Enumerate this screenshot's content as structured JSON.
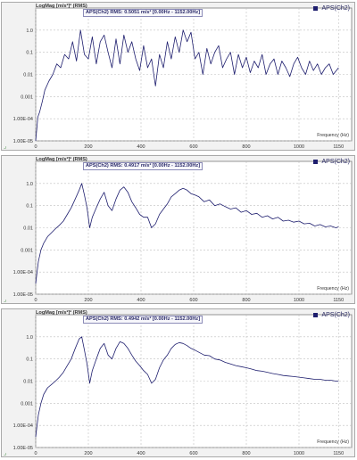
{
  "chart_data": [
    {
      "type": "line",
      "title": "LogMag [m/s²]² (RMS)",
      "rms_annotation": "APS(Ch2) RMS: 0.5051 m/s² [0.00Hz - 1152.00Hz]",
      "xlabel": "Frequency (Hz)",
      "ylabel": "LogMag [m/s²]² (RMS)",
      "xlim": [
        0,
        1200
      ],
      "ylim": [
        1e-05,
        10
      ],
      "log_y": true,
      "grid": true,
      "legend_position": "top-right",
      "x_ticks": [
        "0",
        "200",
        "400",
        "600",
        "800",
        "1000",
        "1150"
      ],
      "y_ticks": [
        "1.0",
        "0.1",
        "0.01",
        "0.001",
        "1.00E-04",
        "1.00E-05"
      ],
      "series": [
        {
          "name": "APS(Ch2)",
          "color": "#1e1e6e",
          "x": [
            0,
            8,
            15,
            25,
            35,
            50,
            65,
            80,
            95,
            110,
            125,
            140,
            155,
            170,
            185,
            200,
            215,
            230,
            245,
            260,
            275,
            290,
            305,
            320,
            335,
            350,
            365,
            380,
            395,
            410,
            425,
            440,
            455,
            470,
            485,
            500,
            515,
            530,
            545,
            560,
            575,
            590,
            605,
            620,
            635,
            650,
            665,
            680,
            695,
            710,
            725,
            740,
            755,
            770,
            785,
            800,
            815,
            830,
            845,
            860,
            875,
            890,
            905,
            920,
            935,
            950,
            965,
            980,
            995,
            1010,
            1025,
            1040,
            1055,
            1070,
            1085,
            1100,
            1115,
            1130,
            1150
          ],
          "values": [
            1e-05,
            0.00012,
            0.0002,
            0.0006,
            0.002,
            0.005,
            0.01,
            0.03,
            0.02,
            0.08,
            0.05,
            0.3,
            0.04,
            1.0,
            0.08,
            0.05,
            0.5,
            0.03,
            0.3,
            0.6,
            0.1,
            0.02,
            0.4,
            0.03,
            0.6,
            0.1,
            0.3,
            0.05,
            0.015,
            0.2,
            0.02,
            0.05,
            0.003,
            0.08,
            0.02,
            0.3,
            0.05,
            0.5,
            0.1,
            1.0,
            0.3,
            0.8,
            0.05,
            0.1,
            0.01,
            0.15,
            0.03,
            0.1,
            0.2,
            0.02,
            0.05,
            0.1,
            0.01,
            0.08,
            0.02,
            0.06,
            0.012,
            0.04,
            0.02,
            0.08,
            0.01,
            0.03,
            0.05,
            0.01,
            0.04,
            0.02,
            0.008,
            0.03,
            0.06,
            0.02,
            0.01,
            0.04,
            0.015,
            0.03,
            0.01,
            0.02,
            0.03,
            0.01,
            0.02
          ]
        }
      ]
    },
    {
      "type": "line",
      "title": "LogMag [m/s²]² (RMS)",
      "rms_annotation": "APS(Ch2) RMS: 0.4917 m/s² [0.00Hz - 1152.00Hz]",
      "xlabel": "Frequency (Hz)",
      "ylabel": "LogMag [m/s²]² (RMS)",
      "xlim": [
        0,
        1200
      ],
      "ylim": [
        1e-05,
        10
      ],
      "log_y": true,
      "grid": true,
      "legend_position": "top-right",
      "x_ticks": [
        "0",
        "200",
        "400",
        "600",
        "800",
        "1000",
        "1150"
      ],
      "y_ticks": [
        "1.0",
        "0.1",
        "0.01",
        "0.001",
        "1.00E-04",
        "1.00E-05"
      ],
      "series": [
        {
          "name": "APS(Ch2)",
          "color": "#1e1e6e",
          "x": [
            0,
            5,
            10,
            20,
            30,
            45,
            60,
            75,
            90,
            105,
            120,
            135,
            150,
            165,
            175,
            185,
            195,
            205,
            215,
            230,
            245,
            260,
            275,
            290,
            305,
            320,
            335,
            350,
            365,
            380,
            395,
            410,
            425,
            440,
            455,
            470,
            485,
            500,
            515,
            530,
            545,
            560,
            575,
            590,
            605,
            620,
            640,
            660,
            680,
            700,
            720,
            740,
            760,
            780,
            800,
            820,
            840,
            860,
            880,
            900,
            920,
            940,
            960,
            980,
            1000,
            1020,
            1040,
            1060,
            1080,
            1100,
            1120,
            1140,
            1150
          ],
          "values": [
            3e-05,
            0.0001,
            0.0003,
            0.001,
            0.002,
            0.004,
            0.006,
            0.009,
            0.013,
            0.02,
            0.04,
            0.08,
            0.2,
            0.5,
            1.0,
            0.3,
            0.08,
            0.01,
            0.03,
            0.08,
            0.2,
            0.4,
            0.1,
            0.06,
            0.2,
            0.5,
            0.7,
            0.4,
            0.15,
            0.08,
            0.04,
            0.03,
            0.03,
            0.01,
            0.015,
            0.04,
            0.07,
            0.12,
            0.25,
            0.35,
            0.5,
            0.6,
            0.5,
            0.35,
            0.3,
            0.25,
            0.15,
            0.18,
            0.1,
            0.12,
            0.09,
            0.07,
            0.08,
            0.05,
            0.06,
            0.04,
            0.045,
            0.03,
            0.035,
            0.025,
            0.03,
            0.02,
            0.022,
            0.018,
            0.02,
            0.015,
            0.016,
            0.012,
            0.014,
            0.011,
            0.012,
            0.01,
            0.011
          ]
        }
      ]
    },
    {
      "type": "line",
      "title": "LogMag [m/s²]² (RMS)",
      "rms_annotation": "APS(Ch2) RMS: 0.4942 m/s² [0.00Hz - 1152.00Hz]",
      "xlabel": "Frequency (Hz)",
      "ylabel": "LogMag [m/s²]² (RMS)",
      "xlim": [
        0,
        1200
      ],
      "ylim": [
        1e-05,
        10
      ],
      "log_y": true,
      "grid": true,
      "legend_position": "top-right",
      "x_ticks": [
        "0",
        "200",
        "400",
        "600",
        "800",
        "1000",
        "1150"
      ],
      "y_ticks": [
        "1.0",
        "0.1",
        "0.01",
        "0.001",
        "1.00E-04",
        "1.00E-05"
      ],
      "series": [
        {
          "name": "APS(Ch2)",
          "color": "#1e1e6e",
          "x": [
            0,
            5,
            10,
            20,
            30,
            45,
            60,
            75,
            90,
            105,
            120,
            135,
            150,
            165,
            175,
            185,
            195,
            205,
            215,
            230,
            245,
            260,
            275,
            290,
            305,
            320,
            335,
            350,
            365,
            380,
            395,
            410,
            425,
            440,
            455,
            470,
            485,
            500,
            515,
            530,
            545,
            560,
            575,
            590,
            605,
            620,
            640,
            660,
            680,
            700,
            720,
            740,
            760,
            780,
            800,
            820,
            840,
            860,
            880,
            900,
            920,
            940,
            960,
            980,
            1000,
            1020,
            1040,
            1060,
            1080,
            1100,
            1120,
            1140,
            1150
          ],
          "values": [
            3e-05,
            0.0001,
            0.0003,
            0.001,
            0.0025,
            0.005,
            0.007,
            0.01,
            0.015,
            0.025,
            0.05,
            0.1,
            0.3,
            0.8,
            1.0,
            0.25,
            0.06,
            0.008,
            0.03,
            0.1,
            0.3,
            0.5,
            0.15,
            0.1,
            0.3,
            0.6,
            0.5,
            0.3,
            0.15,
            0.08,
            0.05,
            0.03,
            0.02,
            0.008,
            0.012,
            0.04,
            0.09,
            0.15,
            0.3,
            0.45,
            0.55,
            0.5,
            0.4,
            0.3,
            0.25,
            0.2,
            0.15,
            0.14,
            0.1,
            0.09,
            0.07,
            0.06,
            0.05,
            0.045,
            0.04,
            0.035,
            0.03,
            0.028,
            0.025,
            0.022,
            0.02,
            0.018,
            0.017,
            0.016,
            0.015,
            0.014,
            0.013,
            0.012,
            0.012,
            0.011,
            0.011,
            0.01,
            0.01
          ]
        }
      ]
    }
  ]
}
